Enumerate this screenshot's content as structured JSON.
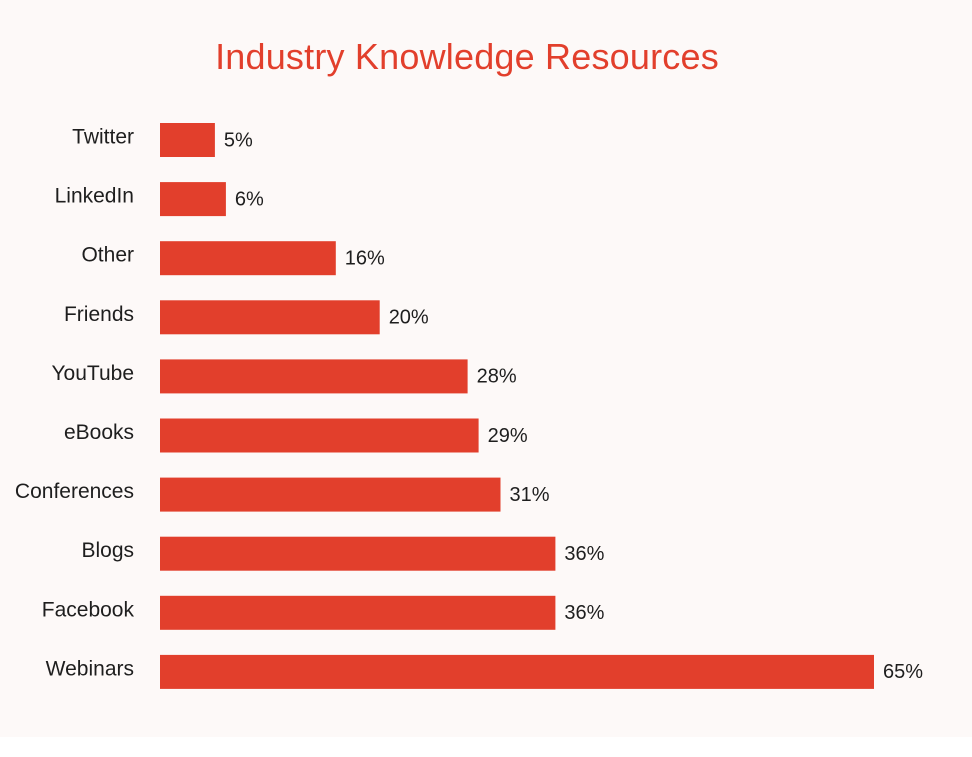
{
  "chart_data": {
    "type": "bar",
    "orientation": "horizontal",
    "title": "Industry Knowledge Resources",
    "categories": [
      "Twitter",
      "LinkedIn",
      "Other",
      "Friends",
      "YouTube",
      "eBooks",
      "Conferences",
      "Blogs",
      "Facebook",
      "Webinars"
    ],
    "values": [
      5,
      6,
      16,
      20,
      28,
      29,
      31,
      36,
      36,
      65
    ],
    "value_labels": [
      "5%",
      "6%",
      "16%",
      "20%",
      "28%",
      "29%",
      "31%",
      "36%",
      "36%",
      "65%"
    ],
    "unit": "%",
    "xlim": [
      0,
      65
    ],
    "grid": false,
    "legend": "none",
    "colors": {
      "bar": "#e23f2c",
      "title": "#e23f2c",
      "text": "#1e1e1e",
      "background": "#fdf9f8"
    }
  }
}
